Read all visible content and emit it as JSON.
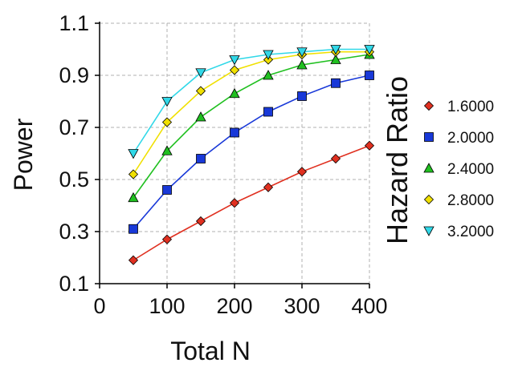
{
  "chart_data": {
    "type": "line",
    "xlabel": "Total N",
    "ylabel": "Power",
    "xlim": [
      0,
      400
    ],
    "ylim": [
      0.1,
      1.1
    ],
    "x_ticks": [
      0,
      100,
      200,
      300,
      400
    ],
    "y_ticks": [
      0.1,
      0.3,
      0.5,
      0.7,
      0.9,
      1.1
    ],
    "x_tick_labels": [
      "0",
      "100",
      "200",
      "300",
      "400"
    ],
    "y_tick_labels": [
      "0.1",
      "0.3",
      "0.5",
      "0.7",
      "0.9",
      "1.1"
    ],
    "grid": true,
    "legend_title": "Hazard Ratio",
    "legend_position": "right",
    "x": [
      50,
      100,
      150,
      200,
      250,
      300,
      350,
      400
    ],
    "series": [
      {
        "name": "1.6000",
        "color": "#e03020",
        "marker": "diamond",
        "values": [
          0.19,
          0.27,
          0.34,
          0.41,
          0.47,
          0.53,
          0.58,
          0.63
        ]
      },
      {
        "name": "2.0000",
        "color": "#1838d8",
        "marker": "square",
        "values": [
          0.31,
          0.46,
          0.58,
          0.68,
          0.76,
          0.82,
          0.87,
          0.9
        ]
      },
      {
        "name": "2.4000",
        "color": "#20c020",
        "marker": "triangle-up",
        "values": [
          0.43,
          0.61,
          0.74,
          0.83,
          0.9,
          0.94,
          0.96,
          0.98
        ]
      },
      {
        "name": "2.8000",
        "color": "#f0e000",
        "marker": "diamond",
        "values": [
          0.52,
          0.72,
          0.84,
          0.92,
          0.96,
          0.98,
          0.99,
          0.99
        ]
      },
      {
        "name": "3.2000",
        "color": "#30d8e8",
        "marker": "triangle-down",
        "values": [
          0.6,
          0.8,
          0.91,
          0.96,
          0.98,
          0.99,
          1.0,
          1.0
        ]
      }
    ]
  }
}
